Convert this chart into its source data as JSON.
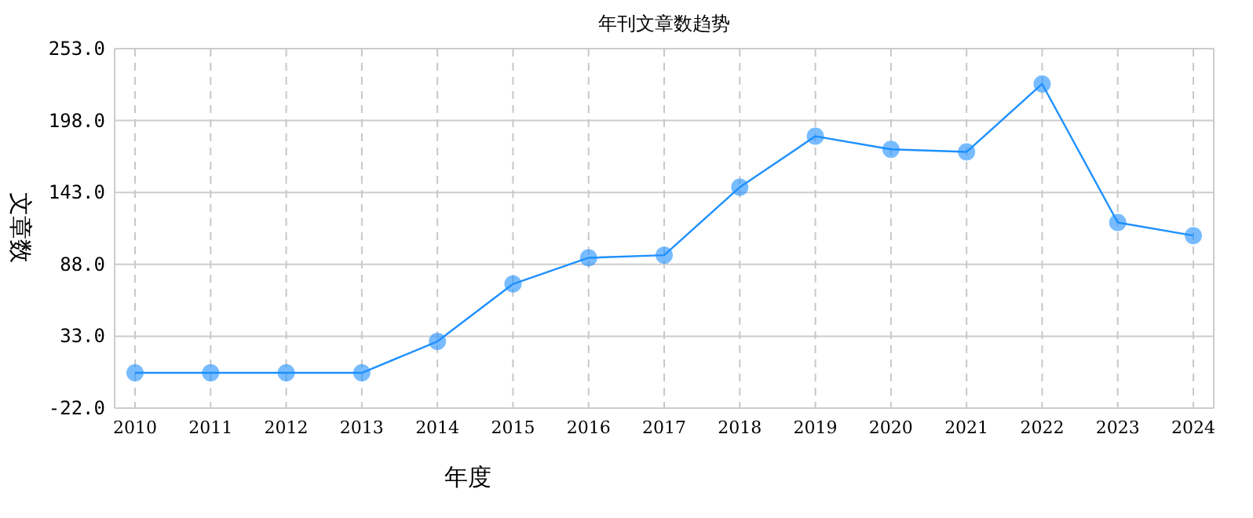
{
  "chart_data": {
    "type": "line",
    "title": "年刊文章数趋势",
    "xlabel": "年度",
    "ylabel": "文章数",
    "categories": [
      "2010",
      "2011",
      "2012",
      "2013",
      "2014",
      "2015",
      "2016",
      "2017",
      "2018",
      "2019",
      "2020",
      "2021",
      "2022",
      "2023",
      "2024"
    ],
    "series": [
      {
        "color": "#1e90ff",
        "values": [
          5,
          5,
          5,
          5,
          29,
          73,
          93,
          95,
          147,
          186,
          176,
          174,
          226,
          120,
          110
        ]
      }
    ],
    "ylim": [
      -22,
      253
    ],
    "yticks": [
      {
        "value": -22,
        "label": "-22.0"
      },
      {
        "value": 33,
        "label": "33.0"
      },
      {
        "value": 88,
        "label": "88.0"
      },
      {
        "value": 143,
        "label": "143.0"
      },
      {
        "value": 198,
        "label": "198.0"
      },
      {
        "value": 253,
        "label": "253.0"
      }
    ],
    "grid": true,
    "marker": "circle",
    "line_style": "solid"
  }
}
